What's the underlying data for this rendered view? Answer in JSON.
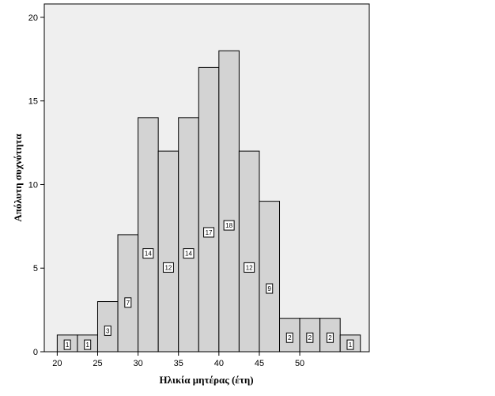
{
  "chart_data": {
    "type": "bar",
    "title": "",
    "xlabel": "Ηλικία μητέρας (έτη)",
    "ylabel": "Απόλυτη συχνότητα",
    "bin_width": 2.5,
    "bins": [
      {
        "start": 20.0,
        "value": 1
      },
      {
        "start": 22.5,
        "value": 1
      },
      {
        "start": 25.0,
        "value": 3
      },
      {
        "start": 27.5,
        "value": 7
      },
      {
        "start": 30.0,
        "value": 14
      },
      {
        "start": 32.5,
        "value": 12
      },
      {
        "start": 35.0,
        "value": 14
      },
      {
        "start": 37.5,
        "value": 17
      },
      {
        "start": 40.0,
        "value": 18
      },
      {
        "start": 42.5,
        "value": 12
      },
      {
        "start": 45.0,
        "value": 9
      },
      {
        "start": 47.5,
        "value": 2
      },
      {
        "start": 50.0,
        "value": 2
      },
      {
        "start": 52.5,
        "value": 2
      },
      {
        "start": 55.0,
        "value": 1
      }
    ],
    "x_tick_labels": [
      "20",
      "25",
      "30",
      "35",
      "40",
      "45",
      "50"
    ],
    "y_ticks": [
      0,
      5,
      10,
      15,
      20
    ],
    "xlim": [
      18.4,
      58.6
    ],
    "ylim": [
      0,
      20.8
    ],
    "grid": false,
    "plot_background": "#efefef",
    "bar_fill": "#d3d3d3",
    "bar_stroke": "#000000"
  }
}
